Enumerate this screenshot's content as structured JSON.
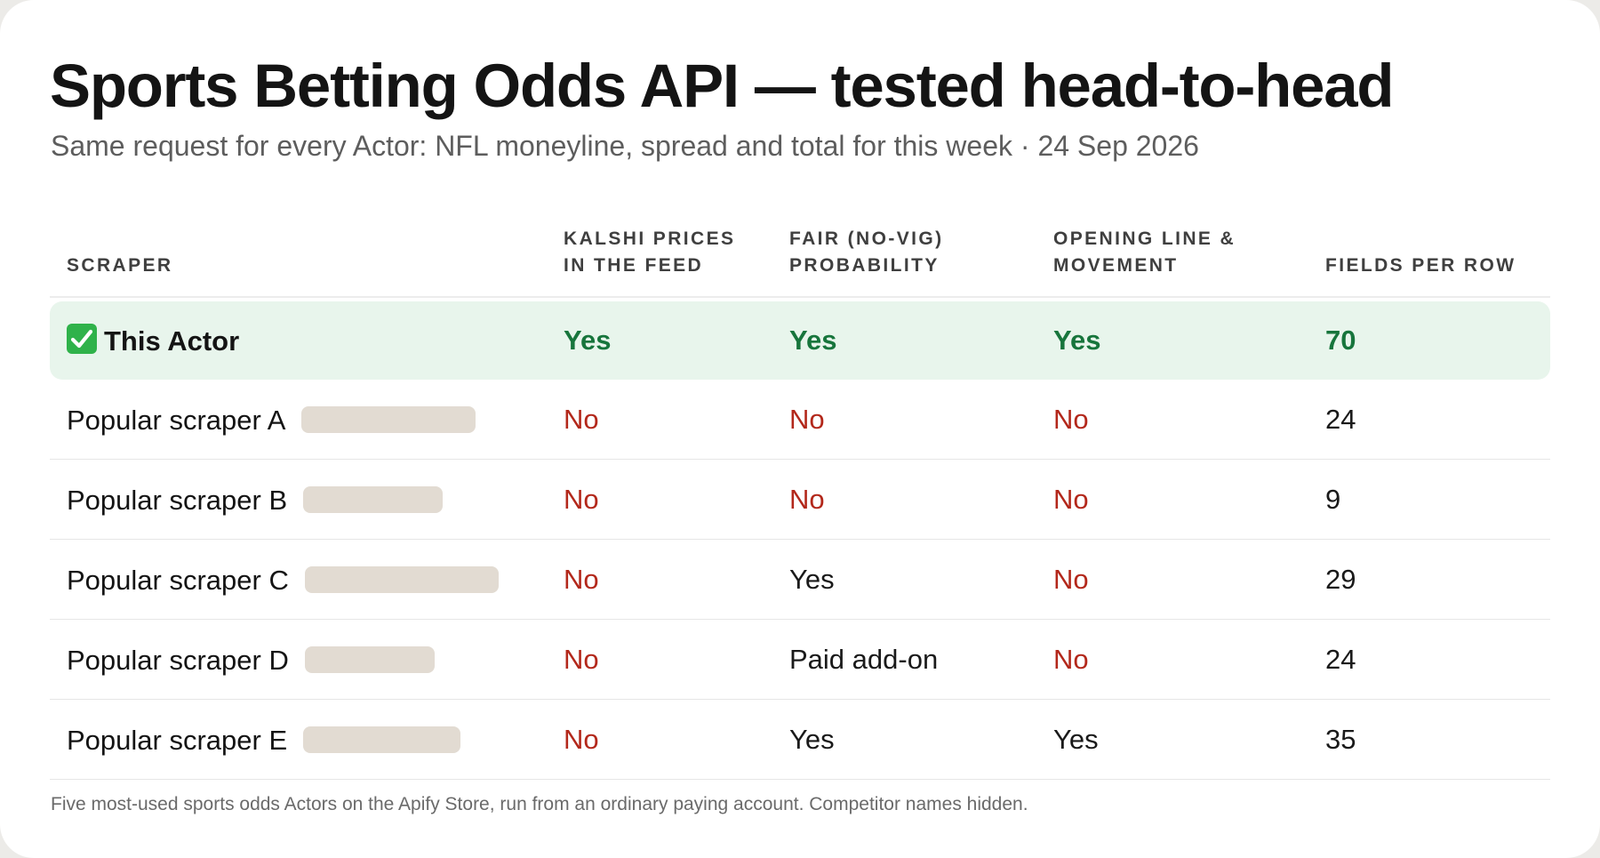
{
  "header": {
    "title": "Sports Betting Odds API — tested head-to-head",
    "subtitle": "Same request for every Actor: NFL moneyline, spread and total for this week · 24 Sep 2026"
  },
  "table": {
    "columns": {
      "scraper": [
        "SCRAPER"
      ],
      "kalshi": [
        "KALSHI PRICES",
        "IN THE FEED"
      ],
      "fair": [
        "FAIR (NO-VIG)",
        "PROBABILITY"
      ],
      "opening": [
        "OPENING LINE &",
        "MOVEMENT"
      ],
      "fields": [
        "FIELDS PER ROW"
      ]
    },
    "highlight": {
      "name": "This Actor",
      "icon": "check-mark-icon",
      "kalshi": "Yes",
      "fair": "Yes",
      "opening": "Yes",
      "fields": "70"
    },
    "rows": [
      {
        "name": "Popular scraper A",
        "kalshi": "No",
        "fair": "No",
        "opening": "No",
        "fields": "24",
        "redacted_fraction": 0.9
      },
      {
        "name": "Popular scraper B",
        "kalshi": "No",
        "fair": "No",
        "opening": "No",
        "fields": "9",
        "redacted_fraction": 0.72
      },
      {
        "name": "Popular scraper C",
        "kalshi": "No",
        "fair": "Yes",
        "opening": "No",
        "fields": "29",
        "redacted_fraction": 1.0
      },
      {
        "name": "Popular scraper D",
        "kalshi": "No",
        "fair": "Paid add-on",
        "opening": "No",
        "fields": "24",
        "redacted_fraction": 0.67
      },
      {
        "name": "Popular scraper E",
        "kalshi": "No",
        "fair": "Yes",
        "opening": "Yes",
        "fields": "35",
        "redacted_fraction": 0.81
      }
    ]
  },
  "footnote": "Five most-used sports odds Actors on the Apify Store, run from an ordinary paying account. Competitor names hidden.",
  "colors": {
    "accent_green": "#17753c",
    "highlight_bg": "#e8f5ec",
    "no_red": "#b3281b",
    "redaction": "#e2dbd2"
  }
}
